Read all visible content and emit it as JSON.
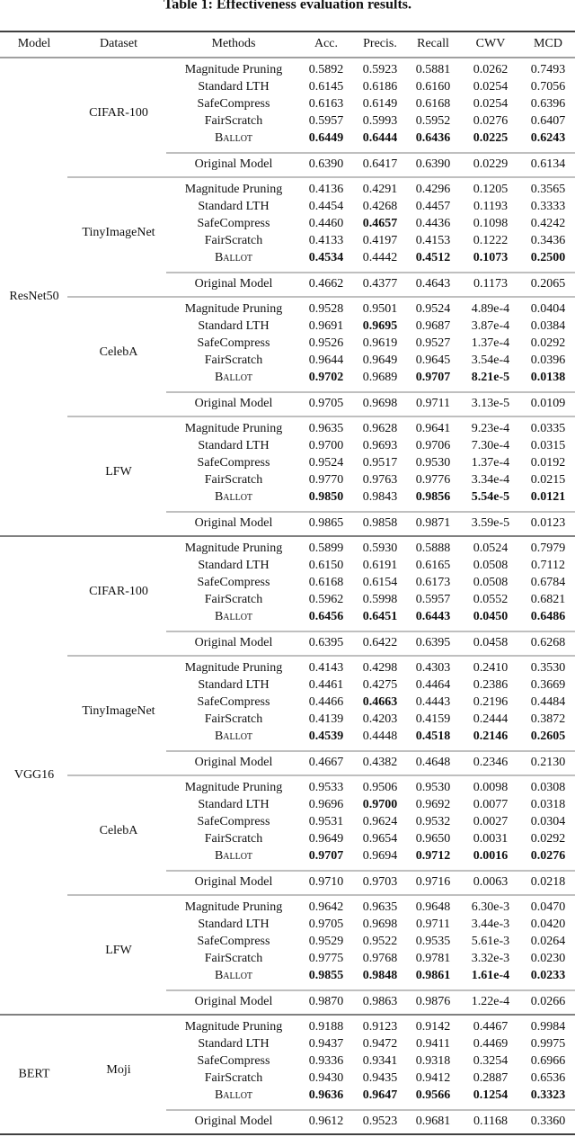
{
  "title": "Table 1: Effectiveness evaluation results.",
  "header": [
    "Model",
    "Dataset",
    "Methods",
    "Acc.",
    "Precis.",
    "Recall",
    "CWV",
    "MCD"
  ],
  "groups": [
    {
      "model": "ResNet50",
      "datasets": [
        {
          "name": "CIFAR-100",
          "rows": [
            {
              "method": "Magnitude Pruning",
              "values": [
                "0.5892",
                "0.5923",
                "0.5881",
                "0.0262",
                "0.7493"
              ],
              "bold": []
            },
            {
              "method": "Standard LTH",
              "values": [
                "0.6145",
                "0.6186",
                "0.6160",
                "0.0254",
                "0.7056"
              ],
              "bold": []
            },
            {
              "method": "SafeCompress",
              "values": [
                "0.6163",
                "0.6149",
                "0.6168",
                "0.0254",
                "0.6396"
              ],
              "bold": []
            },
            {
              "method": "FairScratch",
              "values": [
                "0.5957",
                "0.5993",
                "0.5952",
                "0.0276",
                "0.6407"
              ],
              "bold": []
            },
            {
              "method": "Ballot",
              "values": [
                "0.6449",
                "0.6444",
                "0.6436",
                "0.0225",
                "0.6243"
              ],
              "bold": [
                0,
                1,
                2,
                3,
                4
              ]
            }
          ],
          "original": {
            "method": "Original Model",
            "values": [
              "0.6390",
              "0.6417",
              "0.6390",
              "0.0229",
              "0.6134"
            ]
          }
        },
        {
          "name": "TinyImageNet",
          "rows": [
            {
              "method": "Magnitude Pruning",
              "values": [
                "0.4136",
                "0.4291",
                "0.4296",
                "0.1205",
                "0.3565"
              ],
              "bold": []
            },
            {
              "method": "Standard LTH",
              "values": [
                "0.4454",
                "0.4268",
                "0.4457",
                "0.1193",
                "0.3333"
              ],
              "bold": []
            },
            {
              "method": "SafeCompress",
              "values": [
                "0.4460",
                "0.4657",
                "0.4436",
                "0.1098",
                "0.4242"
              ],
              "bold": [
                1
              ]
            },
            {
              "method": "FairScratch",
              "values": [
                "0.4133",
                "0.4197",
                "0.4153",
                "0.1222",
                "0.3436"
              ],
              "bold": []
            },
            {
              "method": "Ballot",
              "values": [
                "0.4534",
                "0.4442",
                "0.4512",
                "0.1073",
                "0.2500"
              ],
              "bold": [
                0,
                2,
                3,
                4
              ]
            }
          ],
          "original": {
            "method": "Original Model",
            "values": [
              "0.4662",
              "0.4377",
              "0.4643",
              "0.1173",
              "0.2065"
            ]
          }
        },
        {
          "name": "CelebA",
          "rows": [
            {
              "method": "Magnitude Pruning",
              "values": [
                "0.9528",
                "0.9501",
                "0.9524",
                "4.89e-4",
                "0.0404"
              ],
              "bold": []
            },
            {
              "method": "Standard LTH",
              "values": [
                "0.9691",
                "0.9695",
                "0.9687",
                "3.87e-4",
                "0.0384"
              ],
              "bold": [
                1
              ]
            },
            {
              "method": "SafeCompress",
              "values": [
                "0.9526",
                "0.9619",
                "0.9527",
                "1.37e-4",
                "0.0292"
              ],
              "bold": []
            },
            {
              "method": "FairScratch",
              "values": [
                "0.9644",
                "0.9649",
                "0.9645",
                "3.54e-4",
                "0.0396"
              ],
              "bold": []
            },
            {
              "method": "Ballot",
              "values": [
                "0.9702",
                "0.9689",
                "0.9707",
                "8.21e-5",
                "0.0138"
              ],
              "bold": [
                0,
                2,
                3,
                4
              ]
            }
          ],
          "original": {
            "method": "Original Model",
            "values": [
              "0.9705",
              "0.9698",
              "0.9711",
              "3.13e-5",
              "0.0109"
            ]
          }
        },
        {
          "name": "LFW",
          "rows": [
            {
              "method": "Magnitude Pruning",
              "values": [
                "0.9635",
                "0.9628",
                "0.9641",
                "9.23e-4",
                "0.0335"
              ],
              "bold": []
            },
            {
              "method": "Standard LTH",
              "values": [
                "0.9700",
                "0.9693",
                "0.9706",
                "7.30e-4",
                "0.0315"
              ],
              "bold": []
            },
            {
              "method": "SafeCompress",
              "values": [
                "0.9524",
                "0.9517",
                "0.9530",
                "1.37e-4",
                "0.0192"
              ],
              "bold": []
            },
            {
              "method": "FairScratch",
              "values": [
                "0.9770",
                "0.9763",
                "0.9776",
                "3.34e-4",
                "0.0215"
              ],
              "bold": []
            },
            {
              "method": "Ballot",
              "values": [
                "0.9850",
                "0.9843",
                "0.9856",
                "5.54e-5",
                "0.0121"
              ],
              "bold": [
                0,
                2,
                3,
                4
              ]
            }
          ],
          "original": {
            "method": "Original Model",
            "values": [
              "0.9865",
              "0.9858",
              "0.9871",
              "3.59e-5",
              "0.0123"
            ]
          }
        }
      ]
    },
    {
      "model": "VGG16",
      "datasets": [
        {
          "name": "CIFAR-100",
          "rows": [
            {
              "method": "Magnitude Pruning",
              "values": [
                "0.5899",
                "0.5930",
                "0.5888",
                "0.0524",
                "0.7979"
              ],
              "bold": []
            },
            {
              "method": "Standard LTH",
              "values": [
                "0.6150",
                "0.6191",
                "0.6165",
                "0.0508",
                "0.7112"
              ],
              "bold": []
            },
            {
              "method": "SafeCompress",
              "values": [
                "0.6168",
                "0.6154",
                "0.6173",
                "0.0508",
                "0.6784"
              ],
              "bold": []
            },
            {
              "method": "FairScratch",
              "values": [
                "0.5962",
                "0.5998",
                "0.5957",
                "0.0552",
                "0.6821"
              ],
              "bold": []
            },
            {
              "method": "Ballot",
              "values": [
                "0.6456",
                "0.6451",
                "0.6443",
                "0.0450",
                "0.6486"
              ],
              "bold": [
                0,
                1,
                2,
                3,
                4
              ]
            }
          ],
          "original": {
            "method": "Original Model",
            "values": [
              "0.6395",
              "0.6422",
              "0.6395",
              "0.0458",
              "0.6268"
            ]
          }
        },
        {
          "name": "TinyImageNet",
          "rows": [
            {
              "method": "Magnitude Pruning",
              "values": [
                "0.4143",
                "0.4298",
                "0.4303",
                "0.2410",
                "0.3530"
              ],
              "bold": []
            },
            {
              "method": "Standard LTH",
              "values": [
                "0.4461",
                "0.4275",
                "0.4464",
                "0.2386",
                "0.3669"
              ],
              "bold": []
            },
            {
              "method": "SafeCompress",
              "values": [
                "0.4466",
                "0.4663",
                "0.4443",
                "0.2196",
                "0.4484"
              ],
              "bold": [
                1
              ]
            },
            {
              "method": "FairScratch",
              "values": [
                "0.4139",
                "0.4203",
                "0.4159",
                "0.2444",
                "0.3872"
              ],
              "bold": []
            },
            {
              "method": "Ballot",
              "values": [
                "0.4539",
                "0.4448",
                "0.4518",
                "0.2146",
                "0.2605"
              ],
              "bold": [
                0,
                2,
                3,
                4
              ]
            }
          ],
          "original": {
            "method": "Original Model",
            "values": [
              "0.4667",
              "0.4382",
              "0.4648",
              "0.2346",
              "0.2130"
            ]
          }
        },
        {
          "name": "CelebA",
          "rows": [
            {
              "method": "Magnitude Pruning",
              "values": [
                "0.9533",
                "0.9506",
                "0.9530",
                "0.0098",
                "0.0308"
              ],
              "bold": []
            },
            {
              "method": "Standard LTH",
              "values": [
                "0.9696",
                "0.9700",
                "0.9692",
                "0.0077",
                "0.0318"
              ],
              "bold": [
                1
              ]
            },
            {
              "method": "SafeCompress",
              "values": [
                "0.9531",
                "0.9624",
                "0.9532",
                "0.0027",
                "0.0304"
              ],
              "bold": []
            },
            {
              "method": "FairScratch",
              "values": [
                "0.9649",
                "0.9654",
                "0.9650",
                "0.0031",
                "0.0292"
              ],
              "bold": []
            },
            {
              "method": "Ballot",
              "values": [
                "0.9707",
                "0.9694",
                "0.9712",
                "0.0016",
                "0.0276"
              ],
              "bold": [
                0,
                2,
                3,
                4
              ]
            }
          ],
          "original": {
            "method": "Original Model",
            "values": [
              "0.9710",
              "0.9703",
              "0.9716",
              "0.0063",
              "0.0218"
            ]
          }
        },
        {
          "name": "LFW",
          "rows": [
            {
              "method": "Magnitude Pruning",
              "values": [
                "0.9642",
                "0.9635",
                "0.9648",
                "6.30e-3",
                "0.0470"
              ],
              "bold": []
            },
            {
              "method": "Standard LTH",
              "values": [
                "0.9705",
                "0.9698",
                "0.9711",
                "3.44e-3",
                "0.0420"
              ],
              "bold": []
            },
            {
              "method": "SafeCompress",
              "values": [
                "0.9529",
                "0.9522",
                "0.9535",
                "5.61e-3",
                "0.0264"
              ],
              "bold": []
            },
            {
              "method": "FairScratch",
              "values": [
                "0.9775",
                "0.9768",
                "0.9781",
                "3.32e-3",
                "0.0230"
              ],
              "bold": []
            },
            {
              "method": "Ballot",
              "values": [
                "0.9855",
                "0.9848",
                "0.9861",
                "1.61e-4",
                "0.0233"
              ],
              "bold": [
                0,
                1,
                2,
                3,
                4
              ]
            }
          ],
          "original": {
            "method": "Original Model",
            "values": [
              "0.9870",
              "0.9863",
              "0.9876",
              "1.22e-4",
              "0.0266"
            ]
          }
        }
      ]
    },
    {
      "model": "BERT",
      "datasets": [
        {
          "name": "Moji",
          "rows": [
            {
              "method": "Magnitude Pruning",
              "values": [
                "0.9188",
                "0.9123",
                "0.9142",
                "0.4467",
                "0.9984"
              ],
              "bold": []
            },
            {
              "method": "Standard LTH",
              "values": [
                "0.9437",
                "0.9472",
                "0.9411",
                "0.4469",
                "0.9975"
              ],
              "bold": []
            },
            {
              "method": "SafeCompress",
              "values": [
                "0.9336",
                "0.9341",
                "0.9318",
                "0.3254",
                "0.6966"
              ],
              "bold": []
            },
            {
              "method": "FairScratch",
              "values": [
                "0.9430",
                "0.9435",
                "0.9412",
                "0.2887",
                "0.6536"
              ],
              "bold": []
            },
            {
              "method": "Ballot",
              "values": [
                "0.9636",
                "0.9647",
                "0.9566",
                "0.1254",
                "0.3323"
              ],
              "bold": [
                0,
                1,
                2,
                3,
                4
              ]
            }
          ],
          "original": {
            "method": "Original Model",
            "values": [
              "0.9612",
              "0.9523",
              "0.9681",
              "0.1168",
              "0.3360"
            ]
          }
        }
      ]
    }
  ]
}
